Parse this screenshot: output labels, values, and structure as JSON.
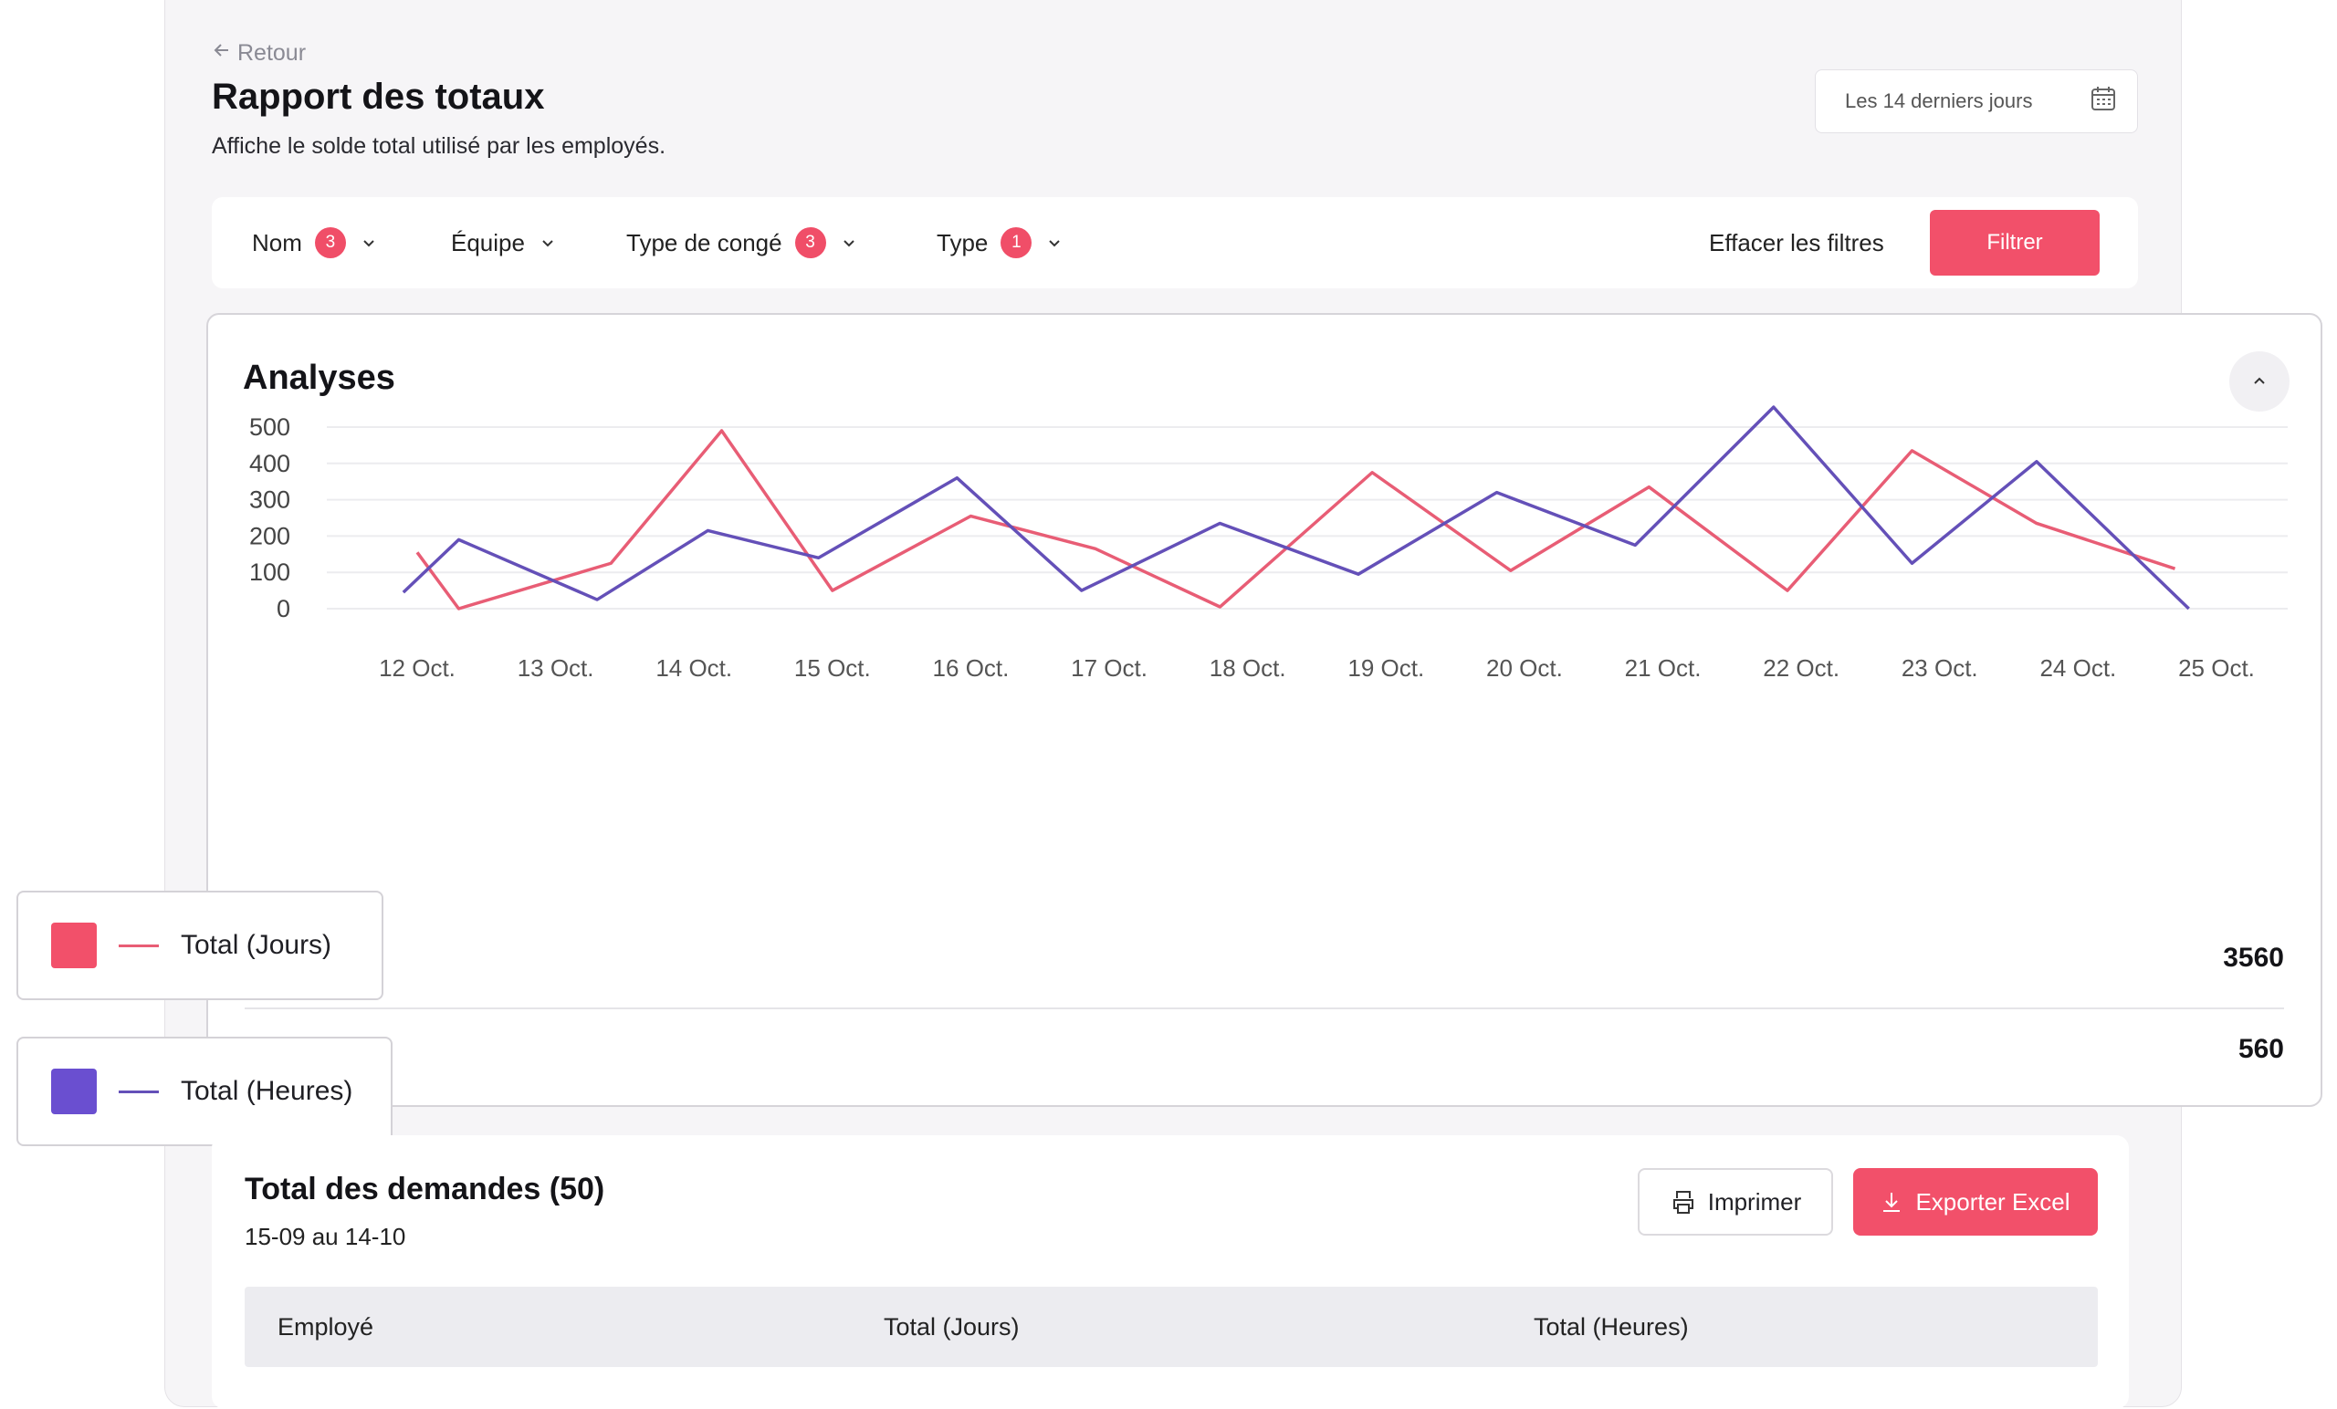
{
  "header": {
    "back_label": "Retour",
    "title": "Rapport des totaux",
    "subtitle": "Affiche le solde total utilisé par les employés.",
    "date_range_label": "Les 14 derniers jours"
  },
  "filters": {
    "items": [
      {
        "label": "Nom",
        "count": "3"
      },
      {
        "label": "Équipe",
        "count": ""
      },
      {
        "label": "Type de congé",
        "count": "3"
      },
      {
        "label": "Type",
        "count": "1"
      }
    ],
    "clear_label": "Effacer les filtres",
    "apply_label": "Filtrer"
  },
  "analytics": {
    "title": "Analyses",
    "total_jours": "3560",
    "total_heures": "560"
  },
  "legend": {
    "jours": "Total (Jours)",
    "heures": "Total (Heures)"
  },
  "requests": {
    "title": "Total des demandes (50)",
    "range": "15-09 au 14-10",
    "print_label": "Imprimer",
    "export_label": "Exporter Excel",
    "columns": [
      "Employé",
      "Total (Jours)",
      "Total (Heures)"
    ]
  },
  "colors": {
    "accent": "#f2506a",
    "series_jours": "#e85d75",
    "series_heures": "#6450b8"
  },
  "chart_data": {
    "type": "line",
    "title": "Analyses",
    "x": [
      "12 Oct.",
      "13 Oct.",
      "14 Oct.",
      "15 Oct.",
      "16 Oct.",
      "17 Oct.",
      "18 Oct.",
      "19 Oct.",
      "20 Oct.",
      "21 Oct.",
      "22 Oct.",
      "23 Oct.",
      "24 Oct.",
      "25 Oct."
    ],
    "ylim": [
      0,
      500
    ],
    "yticks": [
      0,
      100,
      200,
      300,
      400,
      500
    ],
    "grid": true,
    "series": [
      {
        "name": "Total (Jours)",
        "color": "#e85d75",
        "points": [
          [
            0,
            155
          ],
          [
            0.3,
            0
          ],
          [
            1.4,
            125
          ],
          [
            2.2,
            490
          ],
          [
            3.0,
            50
          ],
          [
            4.0,
            255
          ],
          [
            4.9,
            165
          ],
          [
            5.8,
            5
          ],
          [
            6.9,
            375
          ],
          [
            7.9,
            105
          ],
          [
            8.9,
            335
          ],
          [
            9.9,
            50
          ],
          [
            10.8,
            435
          ],
          [
            11.7,
            235
          ],
          [
            12.7,
            110
          ]
        ]
      },
      {
        "name": "Total (Heures)",
        "color": "#6450b8",
        "points": [
          [
            -0.1,
            45
          ],
          [
            0.3,
            190
          ],
          [
            1.3,
            25
          ],
          [
            2.1,
            215
          ],
          [
            2.9,
            140
          ],
          [
            3.9,
            360
          ],
          [
            4.8,
            50
          ],
          [
            5.8,
            235
          ],
          [
            6.8,
            95
          ],
          [
            7.8,
            320
          ],
          [
            8.8,
            175
          ],
          [
            9.8,
            555
          ],
          [
            10.8,
            125
          ],
          [
            11.7,
            405
          ],
          [
            12.8,
            0
          ]
        ]
      }
    ]
  }
}
